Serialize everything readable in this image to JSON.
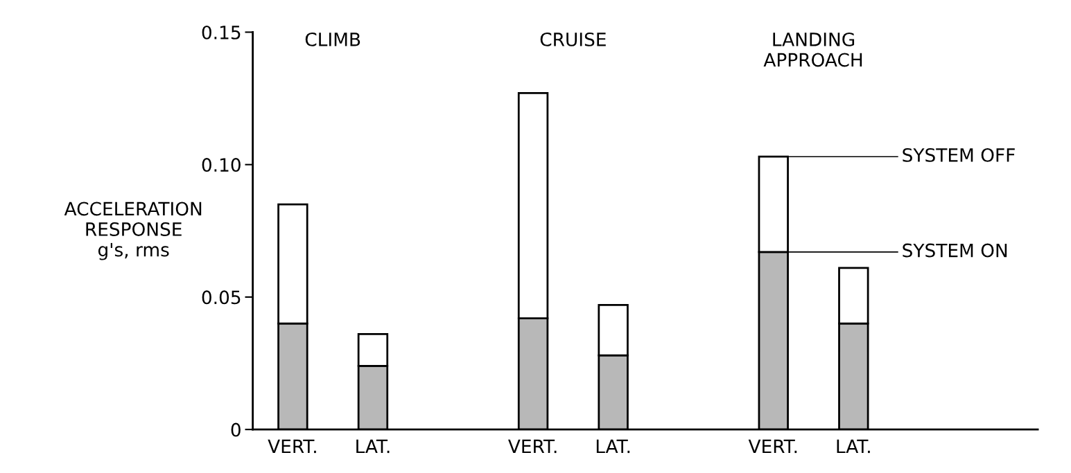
{
  "chart_data": {
    "type": "bar",
    "stacked": true,
    "ylabel": "ACCELERATION\nRESPONSE\ng's, rms",
    "categories": [
      "VERT.",
      "LAT.",
      "VERT.",
      "LAT.",
      "VERT.",
      "LAT."
    ],
    "annotations": [
      "CLIMB",
      "CRUISE",
      "LANDING\nAPPROACH"
    ],
    "series": [
      {
        "name": "SYSTEM ON",
        "color": "#b8b8b8",
        "values": [
          0.04,
          0.024,
          0.042,
          0.028,
          0.067,
          0.04
        ]
      },
      {
        "name": "SYSTEM OFF",
        "color": "#ffffff",
        "values": [
          0.045,
          0.012,
          0.085,
          0.019,
          0.036,
          0.021
        ]
      }
    ],
    "ylim": [
      0,
      0.15
    ],
    "yticks": [
      0,
      0.05,
      {
        "value": 0.1,
        "label": "0.10"
      },
      0.15
    ],
    "grid": false,
    "legend": false
  }
}
